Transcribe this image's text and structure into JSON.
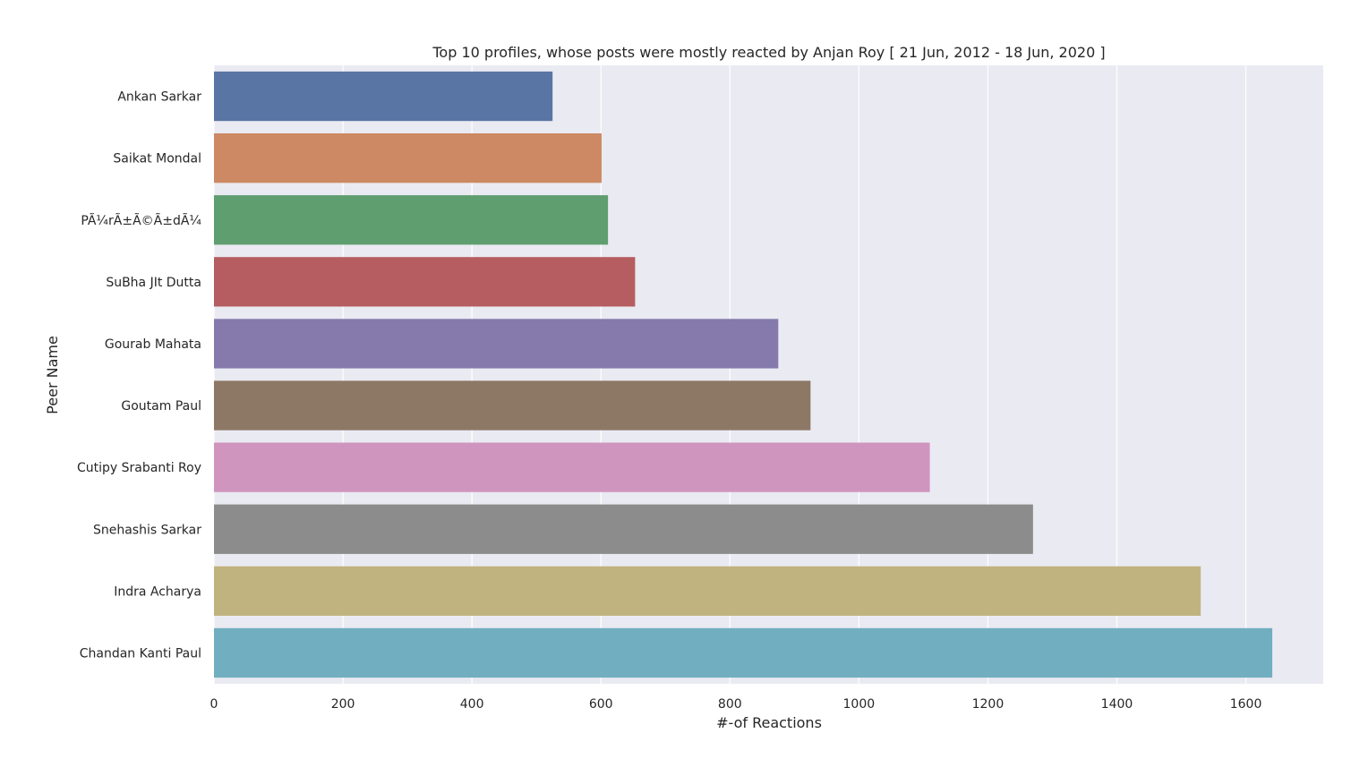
{
  "chart_data": {
    "type": "bar",
    "orientation": "horizontal",
    "title": "Top 10 profiles, whose posts were mostly reacted by Anjan Roy [ 21 Jun, 2012 - 18 Jun, 2020 ]",
    "xlabel": "#-of Reactions",
    "ylabel": "Peer Name",
    "categories": [
      "Ankan Sarkar",
      "Saikat Mondal",
      "PÃ¼rÃ±Ã©Ã±dÃ¼",
      "SuBha JIt Dutta",
      "Gourab Mahata",
      "Goutam Paul",
      "Cutipy Srabanti Roy",
      "Snehashis Sarkar",
      "Indra Acharya",
      "Chandan Kanti Paul"
    ],
    "values": [
      525,
      601,
      611,
      653,
      875,
      925,
      1110,
      1270,
      1530,
      1641
    ],
    "colors": [
      "#5975a4",
      "#cc8963",
      "#5f9e6e",
      "#b55d60",
      "#857aab",
      "#8d7866",
      "#d095bf",
      "#8c8c8c",
      "#c1b37f",
      "#71aec0"
    ],
    "xlim": [
      0,
      1720
    ],
    "xticks": [
      0,
      200,
      400,
      600,
      800,
      1000,
      1200,
      1400,
      1600
    ],
    "grid": true,
    "background": "#eaeaf2",
    "grid_color": "#ffffff"
  }
}
